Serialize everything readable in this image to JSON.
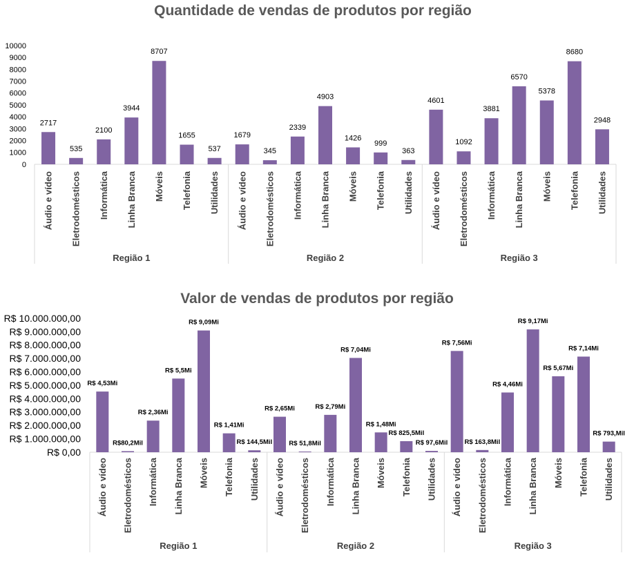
{
  "colors": {
    "bar": "#8064A2",
    "axis": "#D9D9D9",
    "title": "#595959"
  },
  "chart_data": [
    {
      "type": "bar",
      "title": "Quantidade de vendas de produtos por região",
      "groups": [
        "Região 1",
        "Região 2",
        "Região 3"
      ],
      "categories": [
        "Áudio e vídeo",
        "Eletrodomésticos",
        "Informática",
        "Linha Branca",
        "Móveis",
        "Telefonia",
        "Utilidades"
      ],
      "values": [
        [
          2717,
          535,
          2100,
          3944,
          8707,
          1655,
          537
        ],
        [
          1679,
          345,
          2339,
          4903,
          1426,
          999,
          363
        ],
        [
          4601,
          1092,
          3881,
          6570,
          5378,
          8680,
          2948
        ]
      ],
      "labels": [
        [
          "2717",
          "535",
          "2100",
          "3944",
          "8707",
          "1655",
          "537"
        ],
        [
          "1679",
          "345",
          "2339",
          "4903",
          "1426",
          "999",
          "363"
        ],
        [
          "4601",
          "1092",
          "3881",
          "6570",
          "5378",
          "8680",
          "2948"
        ]
      ],
      "ylim": [
        0,
        10000
      ],
      "yticks": [
        0,
        1000,
        2000,
        3000,
        4000,
        5000,
        6000,
        7000,
        8000,
        9000,
        10000
      ],
      "ytick_labels": [
        "0",
        "1000",
        "2000",
        "3000",
        "4000",
        "5000",
        "6000",
        "7000",
        "8000",
        "9000",
        "10000"
      ],
      "grid": false,
      "legend": "none"
    },
    {
      "type": "bar",
      "title": "Valor de vendas de produtos por região",
      "groups": [
        "Região 1",
        "Região 2",
        "Região 3"
      ],
      "categories": [
        "Áudio e vídeo",
        "Eletrodomésticos",
        "Informática",
        "Linha Branca",
        "Móveis",
        "Telefonia",
        "Utilidades"
      ],
      "values": [
        [
          4530000,
          80200,
          2360000,
          5500000,
          9090000,
          1410000,
          144500
        ],
        [
          2650000,
          51800,
          2790000,
          7040000,
          1480000,
          825500,
          97600
        ],
        [
          7560000,
          163800,
          4460000,
          9170000,
          5670000,
          7140000,
          793000
        ]
      ],
      "labels": [
        [
          "R$ 4,53Mi",
          "R$80,2Mil",
          "R$ 2,36Mi",
          "R$ 5,5Mi",
          "R$ 9,09Mi",
          "R$ 1,41Mi",
          "R$ 144,5Mil"
        ],
        [
          "R$ 2,65Mi",
          "R$ 51,8Mil",
          "R$ 2,79Mi",
          "R$ 7,04Mi",
          "R$ 1,48Mi",
          "R$ 825,5Mil",
          "R$ 97,6Mil"
        ],
        [
          "R$ 7,56Mi",
          "R$ 163,8Mil",
          "R$ 4,46Mi",
          "R$ 9,17Mi",
          "R$ 5,67Mi",
          "R$ 7,14Mi",
          "R$ 793,Mil"
        ]
      ],
      "ylim": [
        0,
        10000000
      ],
      "yticks": [
        0,
        1000000,
        2000000,
        3000000,
        4000000,
        5000000,
        6000000,
        7000000,
        8000000,
        9000000,
        10000000
      ],
      "ytick_labels": [
        "R$ 0,00",
        "R$ 1.000.000,00",
        "R$ 2.000.000,00",
        "R$ 3.000.000,00",
        "R$ 4.000.000,00",
        "R$ 5.000.000,00",
        "R$ 6.000.000,00",
        "R$ 7.000.000,00",
        "R$ 8.000.000,00",
        "R$ 9.000.000,00",
        "R$ 10.000.000,00"
      ],
      "grid": false,
      "legend": "none"
    }
  ]
}
